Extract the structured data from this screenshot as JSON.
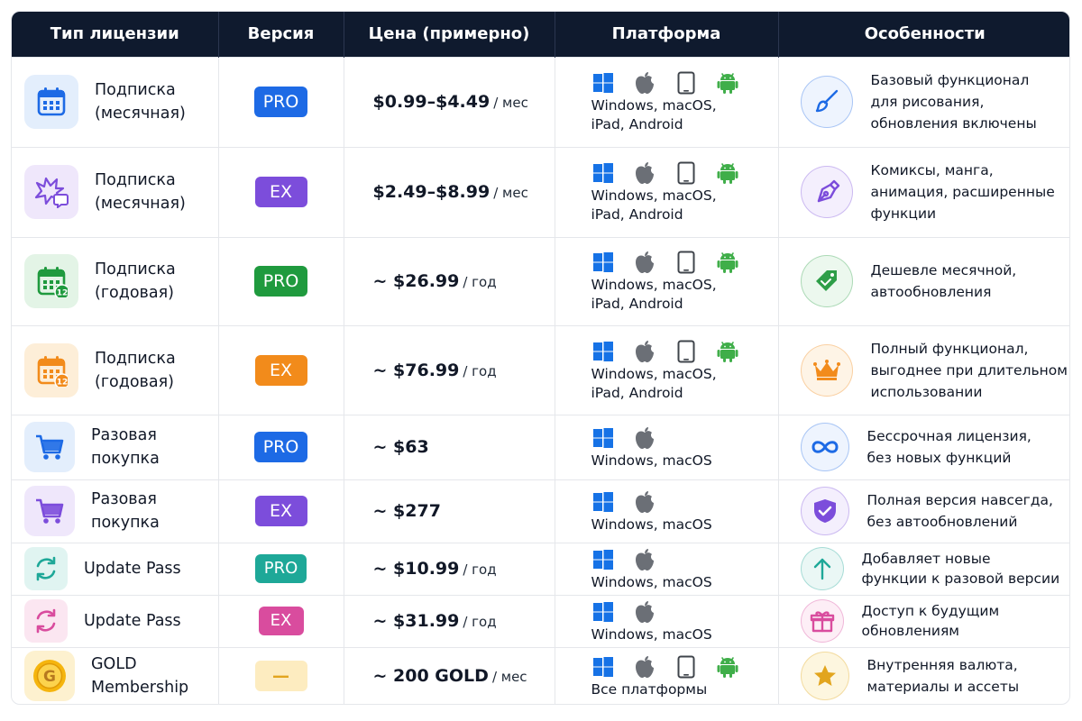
{
  "headers": {
    "type": "Тип лицензии",
    "version": "Версия",
    "price": "Цена (примерно)",
    "platform": "Платформа",
    "features": "Особенности"
  },
  "rows": [
    {
      "type_lines": [
        "Подписка",
        "(месячная)"
      ],
      "type_icon": "calendar-icon",
      "version": "PRO",
      "version_color": "#1d6ae5",
      "price": "$0.99–$4.49",
      "price_unit": "/ мес",
      "platform_lines": [
        "Windows, macOS,",
        "iPad, Android"
      ],
      "platform_icons": [
        "windows-icon",
        "apple-icon",
        "tablet-icon",
        "android-icon"
      ],
      "feature_lines": [
        "Базовый функционал",
        "для рисования,",
        "обновления включены"
      ],
      "feature_icon": "brush-icon",
      "feature_color": "#1d6ae5"
    },
    {
      "type_lines": [
        "Подписка",
        "(месячная)"
      ],
      "type_icon": "comic-burst-icon",
      "version": "EX",
      "version_color": "#7c4ddb",
      "price": "$2.49–$8.99",
      "price_unit": "/ мес",
      "platform_lines": [
        "Windows, macOS,",
        "iPad, Android"
      ],
      "platform_icons": [
        "windows-icon",
        "apple-icon",
        "tablet-icon",
        "android-icon"
      ],
      "feature_lines": [
        "Комиксы, манга,",
        "анимация, расширенные",
        "функции"
      ],
      "feature_icon": "pen-nib-icon",
      "feature_color": "#7c4ddb"
    },
    {
      "type_lines": [
        "Подписка",
        "(годовая)"
      ],
      "type_icon": "calendar-12-icon",
      "version": "PRO",
      "version_color": "#1f9a3e",
      "price": "~ $26.99",
      "price_unit": "/ год",
      "platform_lines": [
        "Windows, macOS,",
        "iPad, Android"
      ],
      "platform_icons": [
        "windows-icon",
        "apple-icon",
        "tablet-icon",
        "android-icon"
      ],
      "feature_lines": [
        "Дешевле месячной,",
        "автообновления"
      ],
      "feature_icon": "price-tag-icon",
      "feature_color": "#2e9e48"
    },
    {
      "type_lines": [
        "Подписка",
        "(годовая)"
      ],
      "type_icon": "calendar-12-icon",
      "version": "EX",
      "version_color": "#f28b1b",
      "price": "~ $76.99",
      "price_unit": "/ год",
      "platform_lines": [
        "Windows, macOS,",
        "iPad, Android"
      ],
      "platform_icons": [
        "windows-icon",
        "apple-icon",
        "tablet-icon",
        "android-icon"
      ],
      "feature_lines": [
        "Полный функционал,",
        "выгоднее при длительном",
        "использовании"
      ],
      "feature_icon": "crown-icon",
      "feature_color": "#f28b1b"
    },
    {
      "type_lines": [
        "Разовая",
        "покупка"
      ],
      "type_icon": "cart-icon",
      "version": "PRO",
      "version_color": "#1d6ae5",
      "price": "~ $63",
      "price_unit": "",
      "platform_lines": [
        "Windows, macOS"
      ],
      "platform_icons": [
        "windows-icon",
        "apple-icon"
      ],
      "feature_lines": [
        "Бессрочная лицензия,",
        "без новых функций"
      ],
      "feature_icon": "infinity-icon",
      "feature_color": "#1d6ae5"
    },
    {
      "type_lines": [
        "Разовая",
        "покупка"
      ],
      "type_icon": "cart-icon",
      "version": "EX",
      "version_color": "#7c4ddb",
      "price": "~ $277",
      "price_unit": "",
      "platform_lines": [
        "Windows, macOS"
      ],
      "platform_icons": [
        "windows-icon",
        "apple-icon"
      ],
      "feature_lines": [
        "Полная версия навсегда,",
        "без автообновлений"
      ],
      "feature_icon": "shield-check-icon",
      "feature_color": "#7c4ddb"
    },
    {
      "type_lines": [
        "Update Pass"
      ],
      "type_icon": "refresh-icon",
      "version": "PRO",
      "version_color": "#1ea898",
      "price": "~ $10.99",
      "price_unit": "/ год",
      "platform_lines": [
        "Windows, macOS"
      ],
      "platform_icons": [
        "windows-icon",
        "apple-icon"
      ],
      "feature_lines": [
        "Добавляет новые",
        "функции к разовой версии"
      ],
      "feature_icon": "arrow-up-icon",
      "feature_color": "#1ea898"
    },
    {
      "type_lines": [
        "Update Pass"
      ],
      "type_icon": "refresh-icon",
      "version": "EX",
      "version_color": "#d94c9e",
      "price": "~ $31.99",
      "price_unit": "/ год",
      "platform_lines": [
        "Windows, macOS"
      ],
      "platform_icons": [
        "windows-icon",
        "apple-icon"
      ],
      "feature_lines": [
        "Доступ к будущим",
        "обновлениям"
      ],
      "feature_icon": "gift-icon",
      "feature_color": "#d94c9e"
    },
    {
      "type_lines": [
        "GOLD",
        "Membership"
      ],
      "type_icon": "gold-coin-icon",
      "version": "—",
      "version_color": "#fdecc0",
      "price": "~ 200 GOLD",
      "price_unit": "/ мес",
      "platform_lines": [
        "Все платформы"
      ],
      "platform_icons": [
        "windows-icon",
        "apple-icon",
        "tablet-icon",
        "android-icon"
      ],
      "feature_lines": [
        "Внутренняя валюта,",
        "материалы и ассеты"
      ],
      "feature_icon": "star-icon",
      "feature_color": "#e2a51e"
    }
  ]
}
